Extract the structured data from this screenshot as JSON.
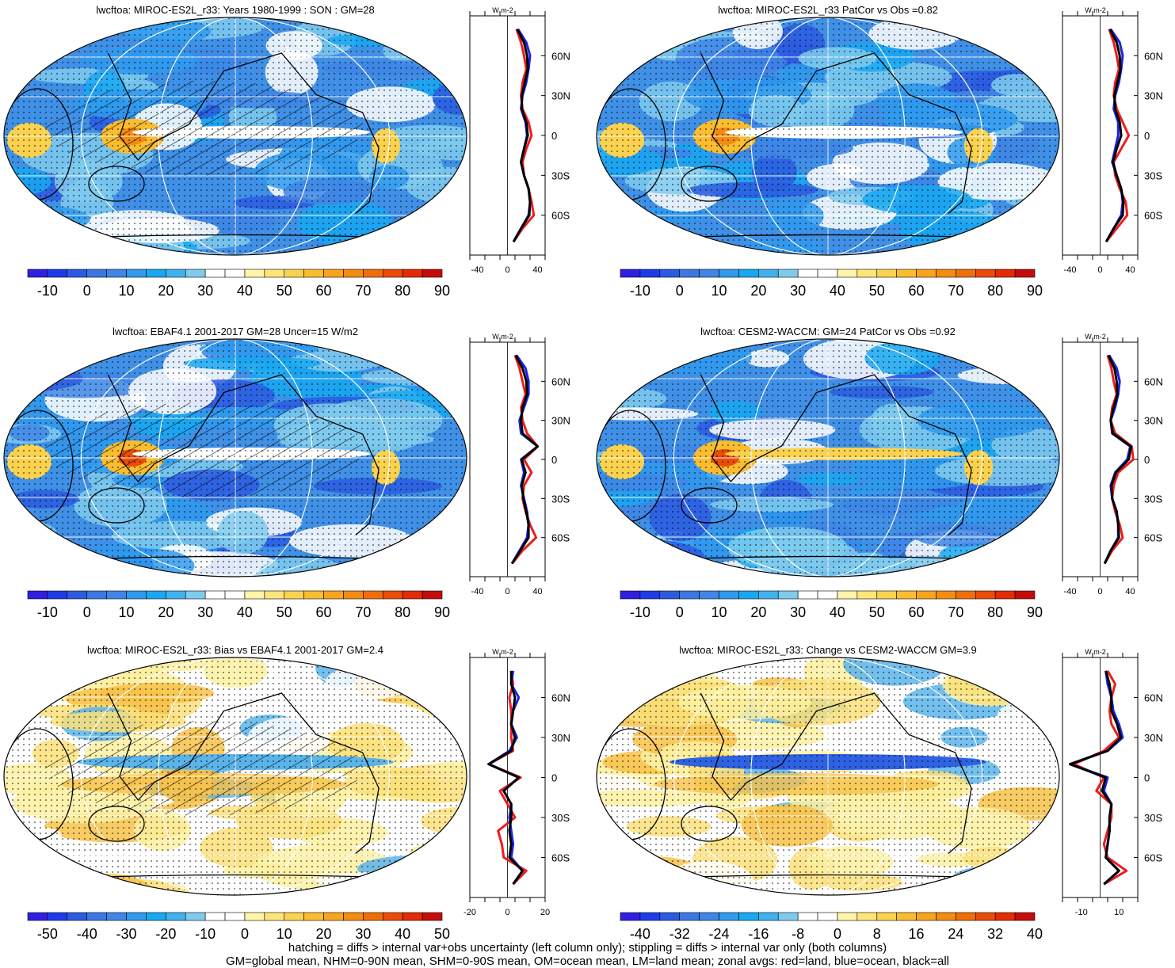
{
  "figure": {
    "footnote_line1": "hatching = diffs > internal var+obs uncertainty (left column only); stippling = diffs > internal var only (both columns)",
    "footnote_line2": "GM=global mean, NHM=0-90N mean, SHM=0-90S mean, OM=ocean mean, LM=land mean; zonal avgs: red=land, blue=ocean, black=all"
  },
  "palette": {
    "full_colors": [
      "#2f1fe0",
      "#1e3bea",
      "#2b5ce0",
      "#3c78e2",
      "#3f86e6",
      "#2f9aee",
      "#18a8f2",
      "#3fb2ee",
      "#7fcbee",
      "#ffffff",
      "#ffffff",
      "#fff5a8",
      "#fde57a",
      "#fbd24f",
      "#f9bd2f",
      "#f7a51c",
      "#f38c10",
      "#ef6e0a",
      "#eb4c08",
      "#e52a06",
      "#c60c0a"
    ],
    "stipple_color": "#000000",
    "zonal_land": "#ee1c1c",
    "zonal_ocean": "#1b24e6",
    "zonal_all": "#000000"
  },
  "chart_data": [
    {
      "type": "heatmap",
      "title": "lwcftoa: MIROC-ES2L_r33: Years 1980-1999 : SON : GM=28",
      "hatching": true,
      "colorbar_labels": [
        "-10",
        "0",
        "10",
        "20",
        "30",
        "40",
        "50",
        "60",
        "70",
        "80",
        "90"
      ],
      "zonal": {
        "xlim": [
          -50,
          50
        ],
        "xticks": [
          "-40",
          "0",
          "40"
        ],
        "yticks": [
          "60N",
          "30N",
          "0",
          "30S",
          "60S"
        ],
        "unit": "W m-2",
        "lat": [
          80,
          70,
          60,
          50,
          40,
          30,
          20,
          10,
          0,
          -10,
          -20,
          -30,
          -40,
          -50,
          -60,
          -70,
          -80
        ],
        "land": [
          12,
          18,
          22,
          25,
          20,
          18,
          20,
          28,
          32,
          25,
          20,
          22,
          28,
          32,
          35,
          20,
          8
        ],
        "ocean": [
          14,
          25,
          30,
          28,
          25,
          20,
          18,
          24,
          26,
          22,
          18,
          22,
          28,
          30,
          28,
          18,
          8
        ],
        "all": [
          13,
          22,
          26,
          27,
          23,
          19,
          19,
          25,
          27,
          22,
          18,
          22,
          28,
          30,
          29,
          18,
          8
        ]
      }
    },
    {
      "type": "heatmap",
      "title": "lwcftoa: MIROC-ES2L_r33 PatCor vs Obs =0.82",
      "hatching": false,
      "colorbar_labels": [
        "-10",
        "0",
        "10",
        "20",
        "30",
        "40",
        "50",
        "60",
        "70",
        "80",
        "90"
      ],
      "zonal": {
        "xlim": [
          -50,
          50
        ],
        "xticks": [
          "-40",
          "0",
          "40"
        ],
        "yticks": [
          "60N",
          "30N",
          "0",
          "30S",
          "60S"
        ],
        "unit": "W m-2",
        "lat": [
          80,
          70,
          60,
          50,
          40,
          30,
          20,
          10,
          0,
          -10,
          -20,
          -30,
          -40,
          -50,
          -60,
          -70,
          -80
        ],
        "land": [
          12,
          18,
          22,
          25,
          20,
          18,
          22,
          30,
          38,
          28,
          18,
          20,
          26,
          34,
          36,
          22,
          8
        ],
        "ocean": [
          14,
          26,
          30,
          28,
          25,
          20,
          18,
          24,
          24,
          20,
          16,
          22,
          28,
          30,
          28,
          18,
          8
        ],
        "all": [
          13,
          22,
          26,
          27,
          23,
          19,
          20,
          26,
          28,
          22,
          17,
          22,
          28,
          31,
          30,
          18,
          8
        ]
      }
    },
    {
      "type": "heatmap",
      "title": "lwcftoa: EBAF4.1 2001-2017 GM=28 Uncer=15 W/m2",
      "hatching": true,
      "colorbar_labels": [
        "-10",
        "0",
        "10",
        "20",
        "30",
        "40",
        "50",
        "60",
        "70",
        "80",
        "90"
      ],
      "zonal": {
        "xlim": [
          -50,
          50
        ],
        "xticks": [
          "-40",
          "0",
          "40"
        ],
        "yticks": [
          "60N",
          "30N",
          "0",
          "30S",
          "60S"
        ],
        "unit": "W m-2",
        "lat": [
          80,
          70,
          60,
          50,
          40,
          30,
          20,
          10,
          0,
          -10,
          -20,
          -30,
          -40,
          -50,
          -60,
          -70,
          -80
        ],
        "land": [
          10,
          16,
          20,
          24,
          18,
          20,
          26,
          40,
          22,
          32,
          22,
          20,
          24,
          30,
          38,
          20,
          6
        ],
        "ocean": [
          12,
          24,
          28,
          28,
          22,
          16,
          18,
          40,
          18,
          22,
          18,
          22,
          26,
          28,
          26,
          16,
          6
        ],
        "all": [
          11,
          20,
          25,
          26,
          20,
          18,
          20,
          40,
          19,
          24,
          19,
          21,
          25,
          28,
          28,
          17,
          6
        ]
      }
    },
    {
      "type": "heatmap",
      "title": "lwcftoa: CESM2-WACCM: GM=24 PatCor vs Obs =0.92",
      "hatching": false,
      "colorbar_labels": [
        "-10",
        "0",
        "10",
        "20",
        "30",
        "40",
        "50",
        "60",
        "70",
        "80",
        "90"
      ],
      "zonal": {
        "xlim": [
          -50,
          50
        ],
        "xticks": [
          "-40",
          "0",
          "40"
        ],
        "yticks": [
          "60N",
          "30N",
          "0",
          "30S",
          "60S"
        ],
        "unit": "W m-2",
        "lat": [
          80,
          70,
          60,
          50,
          40,
          30,
          20,
          10,
          0,
          -10,
          -20,
          -30,
          -40,
          -50,
          -60,
          -70,
          -80
        ],
        "land": [
          10,
          15,
          18,
          22,
          16,
          14,
          20,
          42,
          44,
          24,
          18,
          16,
          20,
          26,
          30,
          16,
          6
        ],
        "ocean": [
          12,
          22,
          26,
          24,
          20,
          14,
          16,
          40,
          36,
          20,
          14,
          16,
          22,
          24,
          24,
          14,
          6
        ],
        "all": [
          11,
          19,
          22,
          23,
          18,
          14,
          17,
          41,
          38,
          21,
          15,
          16,
          22,
          24,
          25,
          14,
          6
        ]
      }
    },
    {
      "type": "heatmap",
      "title": "lwcftoa: MIROC-ES2L_r33: Bias vs EBAF4.1 2001-2017  GM=2.4",
      "hatching": true,
      "colorbar_labels": [
        "-50",
        "-40",
        "-30",
        "-20",
        "-10",
        "0",
        "10",
        "20",
        "30",
        "40",
        "50"
      ],
      "zonal": {
        "xlim": [
          -20,
          20
        ],
        "xticks": [
          "-20",
          "0",
          "20"
        ],
        "yticks": [
          "60N",
          "30N",
          "0",
          "30S",
          "60S"
        ],
        "unit": "W m-2",
        "lat": [
          80,
          70,
          60,
          50,
          40,
          30,
          20,
          10,
          0,
          -10,
          -20,
          -30,
          -40,
          -50,
          -60,
          -70,
          -80
        ],
        "land": [
          2,
          3,
          1,
          2,
          2,
          2,
          3,
          -10,
          7,
          -4,
          0,
          4,
          -5,
          -3,
          -2,
          10,
          3
        ],
        "ocean": [
          3,
          2,
          6,
          3,
          2,
          5,
          1,
          -10,
          6,
          -2,
          2,
          1,
          2,
          3,
          2,
          8,
          3
        ],
        "all": [
          2,
          2,
          4,
          3,
          2,
          4,
          2,
          -10,
          6,
          -2,
          2,
          2,
          1,
          2,
          1,
          8,
          3
        ]
      }
    },
    {
      "type": "heatmap",
      "title": "lwcftoa: MIROC-ES2L_r33: Change vs CESM2-WACCM GM=3.9",
      "hatching": false,
      "colorbar_labels": [
        "-40",
        "-32",
        "-24",
        "-16",
        "-8",
        "0",
        "8",
        "16",
        "24",
        "32",
        "40"
      ],
      "zonal": {
        "xlim": [
          -20,
          20
        ],
        "xticks": [
          "-10",
          "10"
        ],
        "yticks": [
          "60N",
          "30N",
          "0",
          "30S",
          "60S"
        ],
        "unit": "W m-2",
        "lat": [
          80,
          70,
          60,
          50,
          40,
          30,
          20,
          10,
          0,
          -10,
          -20,
          -30,
          -40,
          -50,
          -60,
          -70,
          -80
        ],
        "land": [
          4,
          8,
          6,
          5,
          6,
          10,
          2,
          -14,
          2,
          -2,
          6,
          6,
          4,
          2,
          4,
          14,
          2
        ],
        "ocean": [
          3,
          4,
          6,
          7,
          10,
          12,
          4,
          -16,
          4,
          2,
          6,
          5,
          5,
          4,
          3,
          10,
          2
        ],
        "all": [
          3,
          5,
          6,
          6,
          9,
          11,
          4,
          -16,
          3,
          1,
          6,
          5,
          5,
          4,
          3,
          10,
          2
        ]
      }
    }
  ]
}
